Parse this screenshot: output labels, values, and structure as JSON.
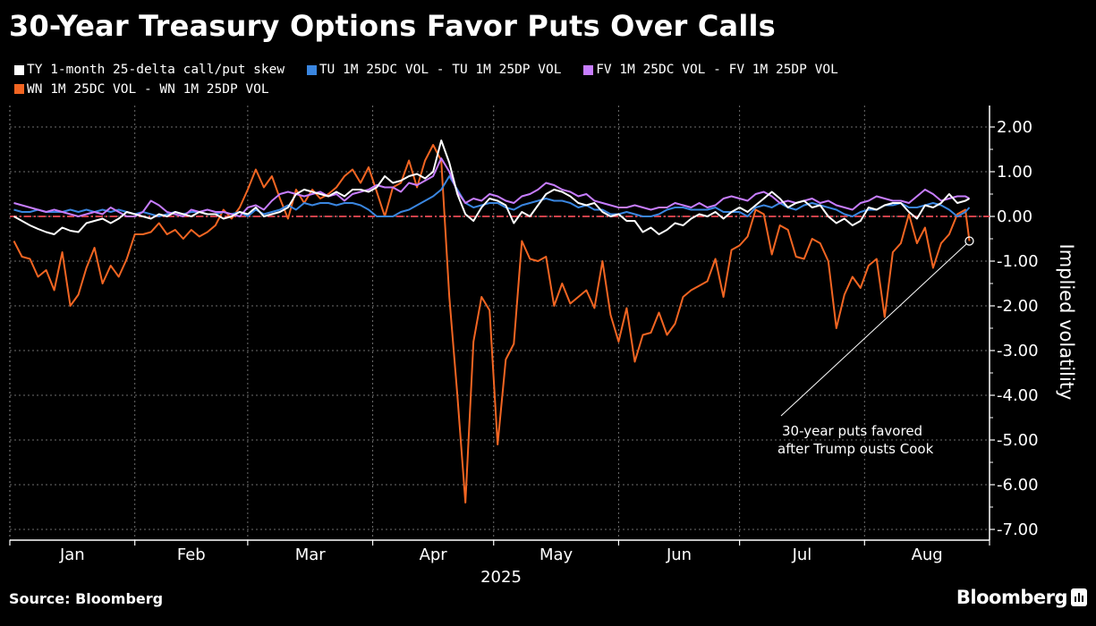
{
  "title": "30-Year Treasury Options Favor Puts Over Calls",
  "legend": [
    {
      "label": "TY 1-month 25-delta call/put skew",
      "color": "#ffffff"
    },
    {
      "label": "TU 1M 25DC VOL - TU 1M 25DP VOL",
      "color": "#3a86e0"
    },
    {
      "label": "FV 1M 25DC VOL - FV 1M 25DP VOL",
      "color": "#c77dff"
    },
    {
      "label": "WN 1M 25DC VOL - WN 1M 25DP VOL",
      "color": "#f26522"
    }
  ],
  "footer": {
    "source": "Source: Bloomberg",
    "brand": "Bloomberg"
  },
  "chart_data": {
    "type": "line",
    "title": "30-Year Treasury Options Favor Puts Over Calls",
    "xlabel": "2025",
    "ylabel": "Implied volatility",
    "ylim": [
      -7,
      2
    ],
    "yticks": [
      "2.00",
      "1.00",
      "0.00",
      "-1.00",
      "-2.00",
      "-3.00",
      "-4.00",
      "-5.00",
      "-6.00",
      "-7.00"
    ],
    "ytick_values": [
      2,
      1,
      0,
      -1,
      -2,
      -3,
      -4,
      -5,
      -6,
      -7
    ],
    "x_range_days": [
      0,
      243
    ],
    "month_labels": [
      "Jan",
      "Feb",
      "Mar",
      "Apr",
      "May",
      "Jun",
      "Jul",
      "Aug"
    ],
    "month_start_days": [
      0,
      31,
      59,
      90,
      120,
      151,
      181,
      212
    ],
    "year_label": "2025",
    "y_axis_side": "right",
    "grid": true,
    "reference_line": {
      "value": 0,
      "color": "#d0414a",
      "style": "dash-dot"
    },
    "annotation": {
      "text_line1": "30-year puts favored",
      "text_line2": "after Trump ousts Cook",
      "target_day": 238,
      "target_value": -0.55
    },
    "x_days": [
      1,
      3,
      5,
      7,
      9,
      11,
      13,
      15,
      17,
      19,
      21,
      23,
      25,
      27,
      29,
      31,
      33,
      35,
      37,
      39,
      41,
      43,
      45,
      47,
      49,
      51,
      53,
      55,
      57,
      59,
      61,
      63,
      65,
      67,
      69,
      71,
      73,
      75,
      77,
      79,
      81,
      83,
      85,
      87,
      89,
      91,
      93,
      95,
      97,
      99,
      101,
      103,
      105,
      107,
      109,
      111,
      113,
      115,
      117,
      119,
      121,
      123,
      125,
      127,
      129,
      131,
      133,
      135,
      137,
      139,
      141,
      143,
      145,
      147,
      149,
      151,
      153,
      155,
      157,
      159,
      161,
      163,
      165,
      167,
      169,
      171,
      173,
      175,
      177,
      179,
      181,
      183,
      185,
      187,
      189,
      191,
      193,
      195,
      197,
      199,
      201,
      203,
      205,
      207,
      209,
      211,
      213,
      215,
      217,
      219,
      221,
      223,
      225,
      227,
      229,
      231,
      233,
      235,
      237,
      238
    ],
    "series": [
      {
        "name": "TY 1-month 25-delta call/put skew",
        "color": "#ffffff",
        "values": [
          0.0,
          -0.1,
          -0.2,
          -0.28,
          -0.35,
          -0.4,
          -0.25,
          -0.32,
          -0.35,
          -0.15,
          -0.1,
          -0.05,
          -0.15,
          -0.05,
          0.1,
          0.05,
          0.0,
          -0.05,
          0.05,
          0.0,
          0.1,
          0.05,
          0.0,
          0.1,
          0.05,
          0.05,
          -0.05,
          0.0,
          0.1,
          0.05,
          0.2,
          0.0,
          0.05,
          0.1,
          0.2,
          0.5,
          0.6,
          0.55,
          0.5,
          0.45,
          0.55,
          0.45,
          0.6,
          0.6,
          0.55,
          0.65,
          0.9,
          0.75,
          0.8,
          0.9,
          0.95,
          0.85,
          1.0,
          1.7,
          1.2,
          0.5,
          0.05,
          -0.1,
          0.2,
          0.4,
          0.35,
          0.25,
          -0.15,
          0.1,
          0.0,
          0.25,
          0.5,
          0.6,
          0.55,
          0.45,
          0.3,
          0.25,
          0.3,
          0.1,
          0.0,
          0.05,
          -0.1,
          -0.1,
          -0.35,
          -0.25,
          -0.4,
          -0.3,
          -0.15,
          -0.2,
          -0.05,
          0.05,
          0.0,
          0.1,
          -0.05,
          0.1,
          0.2,
          0.1,
          0.25,
          0.4,
          0.55,
          0.4,
          0.2,
          0.3,
          0.35,
          0.2,
          0.25,
          0.0,
          -0.15,
          -0.05,
          -0.2,
          -0.1,
          0.2,
          0.15,
          0.25,
          0.3,
          0.3,
          0.1,
          -0.05,
          0.25,
          0.2,
          0.3,
          0.5,
          0.3,
          0.35,
          0.4
        ]
      },
      {
        "name": "TU 1M 25DC VOL - TU 1M 25DP VOL",
        "color": "#3a86e0",
        "values": [
          0.15,
          0.1,
          0.1,
          0.15,
          0.1,
          0.1,
          0.1,
          0.15,
          0.1,
          0.15,
          0.1,
          0.15,
          0.1,
          0.15,
          0.1,
          0.05,
          0.1,
          0.05,
          0.0,
          0.05,
          0.1,
          0.05,
          0.1,
          0.1,
          0.05,
          0.05,
          0.1,
          0.05,
          0.1,
          0.0,
          0.15,
          0.05,
          0.1,
          0.15,
          0.25,
          0.15,
          0.3,
          0.25,
          0.3,
          0.3,
          0.25,
          0.3,
          0.3,
          0.25,
          0.15,
          0.0,
          0.0,
          0.0,
          0.1,
          0.15,
          0.25,
          0.35,
          0.45,
          0.6,
          0.9,
          0.6,
          0.3,
          0.2,
          0.25,
          0.3,
          0.3,
          0.2,
          0.15,
          0.25,
          0.3,
          0.35,
          0.4,
          0.35,
          0.35,
          0.3,
          0.2,
          0.25,
          0.15,
          0.15,
          0.05,
          0.05,
          0.1,
          0.05,
          0.0,
          0.0,
          0.05,
          0.15,
          0.2,
          0.2,
          0.15,
          0.15,
          0.15,
          0.2,
          0.1,
          0.1,
          0.1,
          0.0,
          0.2,
          0.25,
          0.2,
          0.3,
          0.2,
          0.15,
          0.25,
          0.3,
          0.25,
          0.2,
          0.15,
          0.05,
          0.0,
          0.1,
          0.15,
          0.15,
          0.25,
          0.25,
          0.3,
          0.2,
          0.2,
          0.25,
          0.3,
          0.25,
          0.15,
          0.0,
          0.1,
          0.2
        ]
      },
      {
        "name": "FV 1M 25DC VOL - FV 1M 25DP VOL",
        "color": "#c77dff",
        "values": [
          0.3,
          0.25,
          0.2,
          0.15,
          0.1,
          0.15,
          0.1,
          0.05,
          0.0,
          0.05,
          0.1,
          0.05,
          0.2,
          0.1,
          0.0,
          0.0,
          0.1,
          0.35,
          0.25,
          0.1,
          0.05,
          0.0,
          0.15,
          0.1,
          0.15,
          0.1,
          0.1,
          0.05,
          0.0,
          0.2,
          0.25,
          0.15,
          0.35,
          0.5,
          0.55,
          0.5,
          0.45,
          0.5,
          0.55,
          0.45,
          0.5,
          0.35,
          0.5,
          0.55,
          0.6,
          0.7,
          0.65,
          0.65,
          0.55,
          0.75,
          0.7,
          0.8,
          0.9,
          1.3,
          1.0,
          0.55,
          0.3,
          0.4,
          0.35,
          0.5,
          0.45,
          0.35,
          0.3,
          0.45,
          0.5,
          0.6,
          0.75,
          0.7,
          0.6,
          0.55,
          0.45,
          0.5,
          0.35,
          0.3,
          0.25,
          0.2,
          0.2,
          0.25,
          0.2,
          0.15,
          0.2,
          0.2,
          0.3,
          0.25,
          0.2,
          0.3,
          0.2,
          0.25,
          0.4,
          0.45,
          0.4,
          0.35,
          0.5,
          0.55,
          0.45,
          0.3,
          0.35,
          0.3,
          0.35,
          0.4,
          0.3,
          0.35,
          0.25,
          0.2,
          0.15,
          0.3,
          0.35,
          0.45,
          0.4,
          0.35,
          0.35,
          0.3,
          0.45,
          0.6,
          0.5,
          0.35,
          0.4,
          0.45,
          0.45,
          0.4
        ]
      },
      {
        "name": "WN 1M 25DC VOL - WN 1M 25DP VOL",
        "color": "#f26522",
        "values": [
          -0.55,
          -0.9,
          -0.95,
          -1.35,
          -1.2,
          -1.65,
          -0.8,
          -2.0,
          -1.75,
          -1.15,
          -0.7,
          -1.5,
          -1.1,
          -1.35,
          -0.95,
          -0.4,
          -0.4,
          -0.35,
          -0.15,
          -0.4,
          -0.3,
          -0.5,
          -0.3,
          -0.45,
          -0.35,
          -0.2,
          0.15,
          -0.05,
          0.2,
          0.6,
          1.05,
          0.65,
          0.9,
          0.4,
          -0.05,
          0.6,
          0.3,
          0.6,
          0.4,
          0.5,
          0.65,
          0.9,
          1.05,
          0.75,
          1.1,
          0.55,
          0.0,
          0.65,
          0.75,
          1.25,
          0.65,
          1.25,
          1.6,
          1.25,
          -1.8,
          -4.0,
          -6.4,
          -2.8,
          -1.8,
          -2.1,
          -5.1,
          -3.2,
          -2.85,
          -0.55,
          -0.95,
          -1.0,
          -0.9,
          -2.0,
          -1.5,
          -1.95,
          -1.8,
          -1.65,
          -2.05,
          -1.0,
          -2.2,
          -2.8,
          -2.05,
          -3.25,
          -2.65,
          -2.6,
          -2.15,
          -2.65,
          -2.4,
          -1.8,
          -1.65,
          -1.55,
          -1.45,
          -0.95,
          -1.8,
          -0.75,
          -0.65,
          -0.45,
          0.15,
          0.05,
          -0.85,
          -0.2,
          -0.3,
          -0.9,
          -0.95,
          -0.5,
          -0.6,
          -1.0,
          -2.5,
          -1.75,
          -1.35,
          -1.6,
          -1.1,
          -0.95,
          -2.25,
          -0.8,
          -0.6,
          0.05,
          -0.6,
          -0.25,
          -1.15,
          -0.6,
          -0.4,
          0.05,
          0.15,
          -0.55
        ]
      }
    ]
  }
}
